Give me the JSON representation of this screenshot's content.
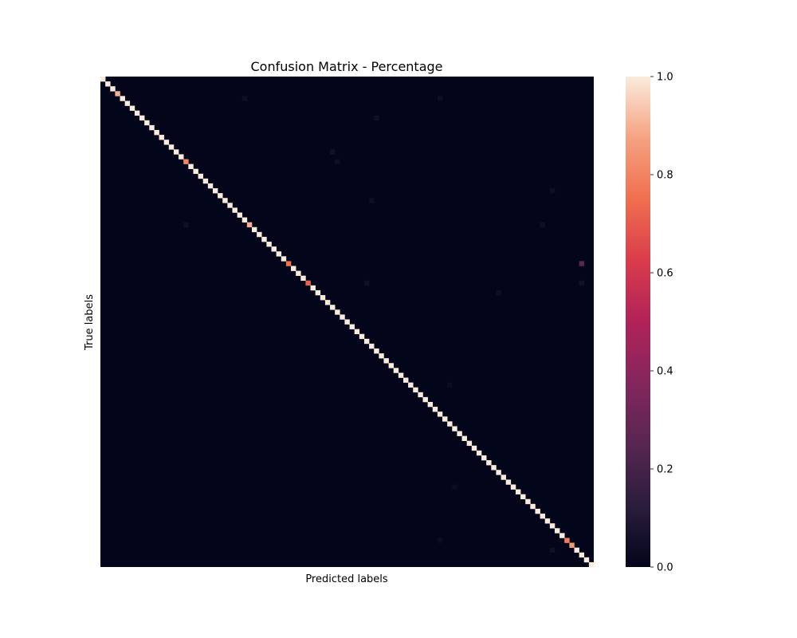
{
  "chart_data": {
    "type": "heatmap",
    "title": "Confusion Matrix - Percentage",
    "xlabel": "Predicted labels",
    "ylabel": "True labels",
    "n_classes": 101,
    "x_ticks_shown": false,
    "y_ticks_shown": false,
    "colormap": "rocket",
    "vmin": 0.0,
    "vmax": 1.0,
    "colorbar": {
      "ticks": [
        0.0,
        0.2,
        0.4,
        0.6,
        0.8,
        1.0
      ],
      "tick_labels": [
        "0.0",
        "0.2",
        "0.4",
        "0.6",
        "0.8",
        "1.0"
      ]
    },
    "diagonal_default": 1.0,
    "diagonal_exceptions": [
      {
        "index": 3,
        "value": 0.9
      },
      {
        "index": 17,
        "value": 0.8
      },
      {
        "index": 30,
        "value": 0.9
      },
      {
        "index": 38,
        "value": 0.75
      },
      {
        "index": 42,
        "value": 0.72
      },
      {
        "index": 95,
        "value": 0.78
      },
      {
        "index": 96,
        "value": 0.85
      }
    ],
    "off_diagonal_cells": [
      {
        "row": 38,
        "col": 98,
        "value": 0.25
      },
      {
        "row": 4,
        "col": 29,
        "value": 0.04
      },
      {
        "row": 4,
        "col": 69,
        "value": 0.04
      },
      {
        "row": 8,
        "col": 56,
        "value": 0.04
      },
      {
        "row": 15,
        "col": 47,
        "value": 0.05
      },
      {
        "row": 17,
        "col": 48,
        "value": 0.04
      },
      {
        "row": 23,
        "col": 92,
        "value": 0.04
      },
      {
        "row": 25,
        "col": 55,
        "value": 0.04
      },
      {
        "row": 30,
        "col": 17,
        "value": 0.04
      },
      {
        "row": 30,
        "col": 90,
        "value": 0.04
      },
      {
        "row": 42,
        "col": 54,
        "value": 0.04
      },
      {
        "row": 42,
        "col": 98,
        "value": 0.05
      },
      {
        "row": 44,
        "col": 81,
        "value": 0.04
      },
      {
        "row": 63,
        "col": 71,
        "value": 0.03
      },
      {
        "row": 84,
        "col": 72,
        "value": 0.03
      },
      {
        "row": 95,
        "col": 69,
        "value": 0.03
      },
      {
        "row": 97,
        "col": 92,
        "value": 0.04
      }
    ]
  }
}
